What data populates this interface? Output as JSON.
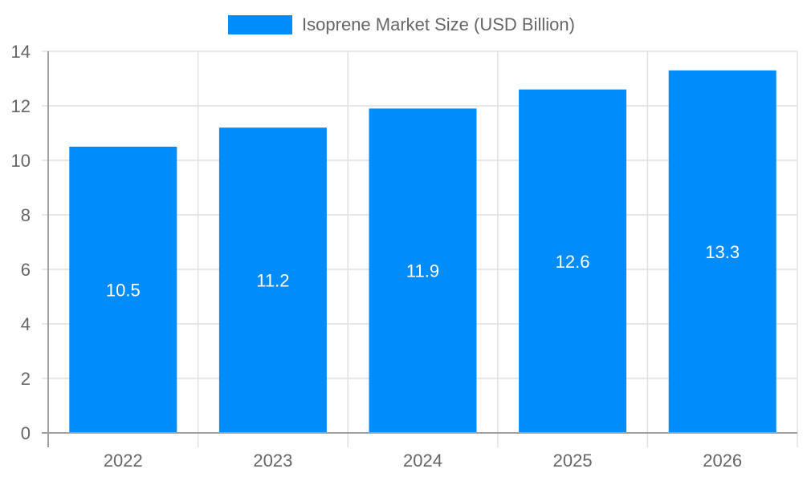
{
  "chart_data": {
    "type": "bar",
    "title": "",
    "legend": [
      {
        "label": "Isoprene Market Size (USD Billion)",
        "color": "#008cfa"
      }
    ],
    "legend_position": "top",
    "categories": [
      "2022",
      "2023",
      "2024",
      "2025",
      "2026"
    ],
    "series": [
      {
        "name": "Isoprene Market Size (USD Billion)",
        "values": [
          10.5,
          11.2,
          11.9,
          12.6,
          13.3
        ],
        "color": "#008cfa"
      }
    ],
    "data_labels": [
      "10.5",
      "11.2",
      "11.9",
      "12.6",
      "13.3"
    ],
    "xlabel": "",
    "ylabel": "",
    "ylim": [
      0,
      14
    ],
    "yticks": [
      0,
      2,
      4,
      6,
      8,
      10,
      12,
      14
    ],
    "grid": true
  },
  "colors": {
    "bar": "#008cfa",
    "grid": "#e0e0e0",
    "axis": "#a0a0a0",
    "tick_text": "#666666",
    "label_text": "#ffffff"
  }
}
